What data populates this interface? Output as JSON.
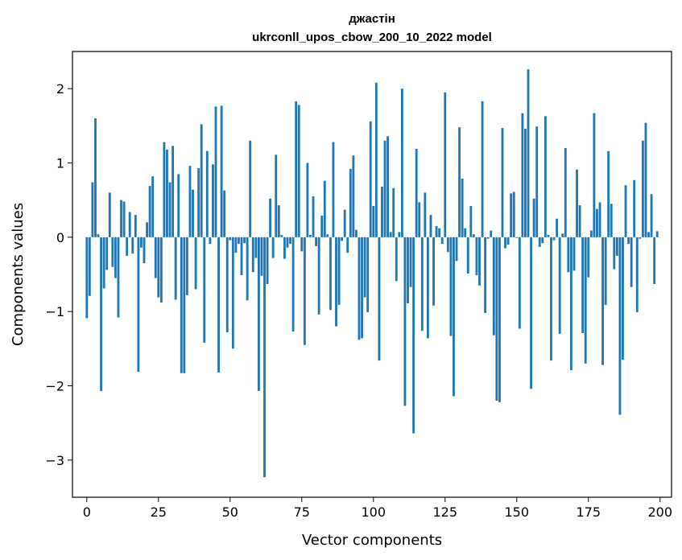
{
  "chart_data": {
    "type": "bar",
    "title": "джастін",
    "subtitle": "ukrconll_upos_cbow_200_10_2022 model",
    "xlabel": "Vector components",
    "ylabel": "Components values",
    "xlim": [
      -5,
      204
    ],
    "ylim": [
      -3.5,
      2.5
    ],
    "xticks": [
      0,
      25,
      50,
      75,
      100,
      125,
      150,
      175,
      200
    ],
    "xtick_labels": [
      "0",
      "25",
      "50",
      "75",
      "100",
      "125",
      "150",
      "175",
      "200"
    ],
    "yticks": [
      -3,
      -2,
      -1,
      0,
      1,
      2
    ],
    "ytick_labels": [
      "−3",
      "−2",
      "−1",
      "0",
      "1",
      "2"
    ],
    "grid": false,
    "bar_color": "#1f77b4",
    "x": [
      0,
      1,
      2,
      3,
      4,
      5,
      6,
      7,
      8,
      9,
      10,
      11,
      12,
      13,
      14,
      15,
      16,
      17,
      18,
      19,
      20,
      21,
      22,
      23,
      24,
      25,
      26,
      27,
      28,
      29,
      30,
      31,
      32,
      33,
      34,
      35,
      36,
      37,
      38,
      39,
      40,
      41,
      42,
      43,
      44,
      45,
      46,
      47,
      48,
      49,
      50,
      51,
      52,
      53,
      54,
      55,
      56,
      57,
      58,
      59,
      60,
      61,
      62,
      63,
      64,
      65,
      66,
      67,
      68,
      69,
      70,
      71,
      72,
      73,
      74,
      75,
      76,
      77,
      78,
      79,
      80,
      81,
      82,
      83,
      84,
      85,
      86,
      87,
      88,
      89,
      90,
      91,
      92,
      93,
      94,
      95,
      96,
      97,
      98,
      99,
      100,
      101,
      102,
      103,
      104,
      105,
      106,
      107,
      108,
      109,
      110,
      111,
      112,
      113,
      114,
      115,
      116,
      117,
      118,
      119,
      120,
      121,
      122,
      123,
      124,
      125,
      126,
      127,
      128,
      129,
      130,
      131,
      132,
      133,
      134,
      135,
      136,
      137,
      138,
      139,
      140,
      141,
      142,
      143,
      144,
      145,
      146,
      147,
      148,
      149,
      150,
      151,
      152,
      153,
      154,
      155,
      156,
      157,
      158,
      159,
      160,
      161,
      162,
      163,
      164,
      165,
      166,
      167,
      168,
      169,
      170,
      171,
      172,
      173,
      174,
      175,
      176,
      177,
      178,
      179,
      180,
      181,
      182,
      183,
      184,
      185,
      186,
      187,
      188,
      189,
      190,
      191,
      192,
      193,
      194,
      195,
      196,
      197,
      198,
      199
    ],
    "values": [
      -1.09,
      -0.79,
      0.74,
      1.6,
      0.04,
      -2.07,
      -0.69,
      -0.44,
      0.6,
      -0.4,
      -0.55,
      -1.08,
      0.5,
      0.48,
      -0.25,
      0.34,
      -0.22,
      0.3,
      -1.81,
      -0.14,
      -0.35,
      0.2,
      0.69,
      0.82,
      -0.55,
      -0.81,
      -0.88,
      1.28,
      1.18,
      0.74,
      1.23,
      -0.84,
      0.85,
      -1.83,
      -1.83,
      -0.78,
      0.96,
      0.64,
      -0.7,
      0.93,
      1.52,
      -1.42,
      1.16,
      -0.09,
      0.98,
      1.76,
      -1.82,
      1.77,
      0.63,
      -1.28,
      -0.04,
      -1.5,
      -0.21,
      -0.09,
      -0.51,
      -0.08,
      -0.85,
      1.3,
      -0.47,
      -0.28,
      -2.07,
      -0.52,
      -3.23,
      -0.63,
      0.52,
      -0.28,
      1.11,
      0.43,
      0.03,
      -0.29,
      -0.14,
      -0.09,
      -1.27,
      1.83,
      1.78,
      -0.19,
      -1.45,
      1.0,
      0.03,
      0.55,
      -0.12,
      -1.04,
      0.29,
      0.76,
      0.04,
      -0.98,
      1.28,
      -1.2,
      -0.91,
      -0.05,
      0.37,
      -0.21,
      0.92,
      1.1,
      0.1,
      -1.38,
      -1.36,
      -0.81,
      -1.01,
      1.56,
      0.42,
      2.08,
      -1.66,
      0.68,
      1.3,
      1.36,
      0.07,
      0.66,
      -0.59,
      0.07,
      2.0,
      -2.27,
      -0.89,
      -0.67,
      -2.64,
      1.19,
      0.47,
      -1.26,
      0.6,
      -1.36,
      0.3,
      -0.92,
      0.15,
      0.12,
      -0.09,
      1.95,
      -0.2,
      -1.33,
      -2.14,
      -0.32,
      1.48,
      0.79,
      0.12,
      -0.49,
      0.42,
      0.04,
      -0.51,
      -0.65,
      1.83,
      -1.02,
      -0.02,
      0.09,
      -1.32,
      -2.2,
      -2.22,
      1.47,
      -0.15,
      -0.1,
      0.59,
      0.61,
      -0.01,
      -1.23,
      1.67,
      1.46,
      2.26,
      -2.04,
      0.52,
      1.49,
      -0.13,
      -0.08,
      1.63,
      0.03,
      -1.66,
      -0.04,
      0.25,
      -1.3,
      0.05,
      1.2,
      -0.47,
      -1.79,
      -0.45,
      0.91,
      0.43,
      -1.29,
      -1.7,
      -0.54,
      0.09,
      1.67,
      0.38,
      0.47,
      -1.72,
      -0.91,
      1.16,
      0.45,
      -0.43,
      -0.25,
      -2.39,
      -1.65,
      0.7,
      -0.09,
      -0.67,
      0.77,
      -1.01,
      -0.02,
      1.3,
      1.54,
      0.07,
      0.58,
      -0.63,
      0.08
    ]
  }
}
